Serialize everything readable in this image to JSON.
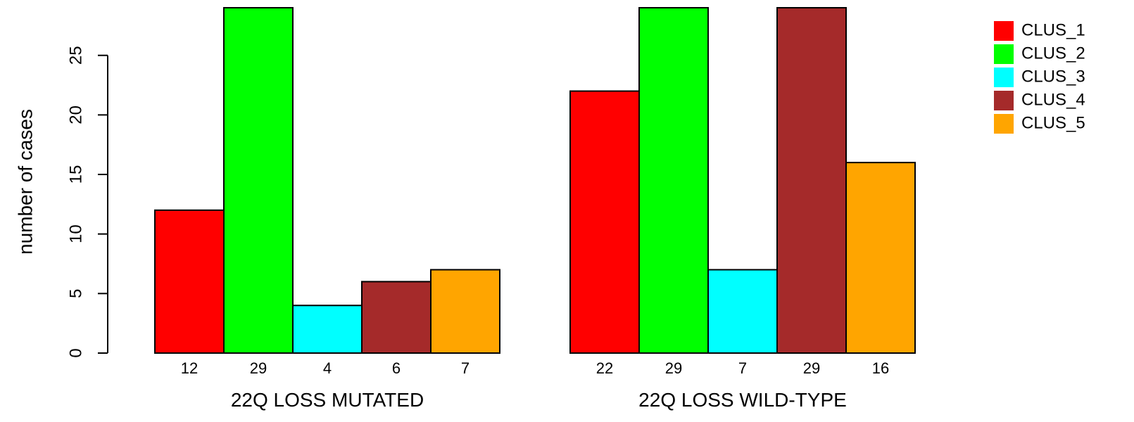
{
  "chart_data": {
    "type": "bar",
    "ylabel": "number of cases",
    "ylim": [
      0,
      29
    ],
    "yticks": [
      0,
      5,
      10,
      15,
      20,
      25
    ],
    "groups": [
      {
        "label": "22Q LOSS MUTATED",
        "values": [
          12,
          29,
          4,
          6,
          7
        ],
        "value_labels": [
          "12",
          "29",
          "4",
          "6",
          "7"
        ]
      },
      {
        "label": "22Q LOSS WILD-TYPE",
        "values": [
          22,
          29,
          7,
          29,
          16
        ],
        "value_labels": [
          "22",
          "29",
          "7",
          "29",
          "16"
        ]
      }
    ],
    "series": [
      {
        "name": "CLUS_1",
        "color": "#ff0000"
      },
      {
        "name": "CLUS_2",
        "color": "#00ff00"
      },
      {
        "name": "CLUS_3",
        "color": "#00ffff"
      },
      {
        "name": "CLUS_4",
        "color": "#a52a2a"
      },
      {
        "name": "CLUS_5",
        "color": "#ffa500"
      }
    ],
    "legend_position": "top-right",
    "grid": false
  }
}
